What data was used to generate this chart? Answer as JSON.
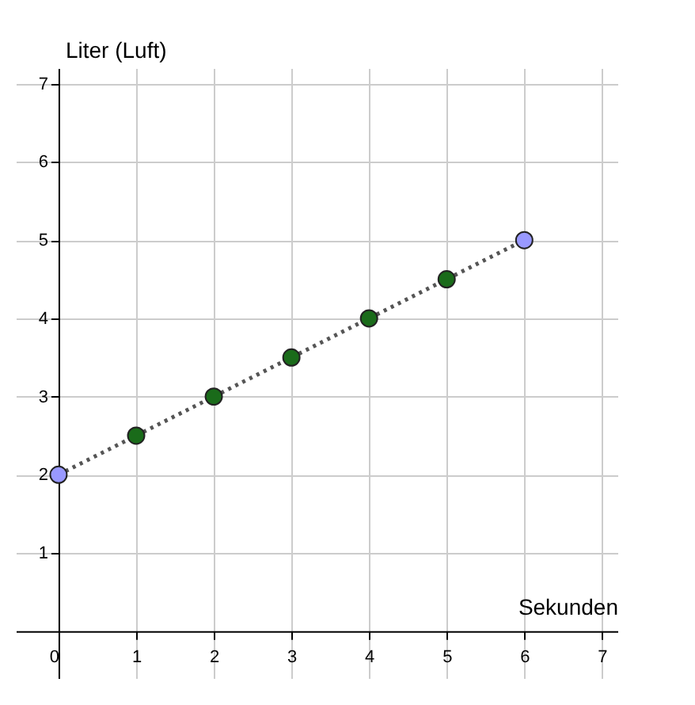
{
  "chart_data": {
    "type": "scatter",
    "xlabel": "Sekunden",
    "ylabel": "Liter (Luft)",
    "xlim": [
      -0.55,
      7.2
    ],
    "ylim": [
      -0.6,
      7.2
    ],
    "xticks": [
      0,
      1,
      2,
      3,
      4,
      5,
      6,
      7
    ],
    "yticks": [
      1,
      2,
      3,
      4,
      5,
      6,
      7
    ],
    "grid": true,
    "marker": "circle",
    "series": [
      {
        "type": "line",
        "marker": "none",
        "line_style": "dotted",
        "color": "#555555",
        "x": [
          0,
          6
        ],
        "values": [
          2,
          5
        ]
      },
      {
        "color": "#1a6b1a",
        "x": [
          1,
          2,
          3,
          4,
          5
        ],
        "values": [
          2.5,
          3,
          3.5,
          4,
          4.5
        ]
      },
      {
        "color": "#9999ff",
        "x": [
          0,
          6
        ],
        "values": [
          2,
          5
        ]
      }
    ]
  }
}
